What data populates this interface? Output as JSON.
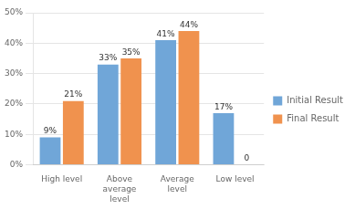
{
  "chart_data": {
    "type": "bar",
    "categories": [
      "High level",
      "Above\naverage\nlevel",
      "Average\nlevel",
      "Low level"
    ],
    "series": [
      {
        "name": "Initial Result",
        "color": "#70A6D8",
        "values": [
          9,
          33,
          41,
          17
        ],
        "value_labels": [
          "9%",
          "33%",
          "41%",
          "17%"
        ]
      },
      {
        "name": "Final Result",
        "color": "#F0924E",
        "values": [
          21,
          35,
          44,
          0
        ],
        "value_labels": [
          "21%",
          "35%",
          "44%",
          "0"
        ]
      }
    ],
    "ylim": [
      0,
      50
    ],
    "yticks": [
      {
        "value": 0,
        "label": "0%"
      },
      {
        "value": 10,
        "label": "10%"
      },
      {
        "value": 20,
        "label": "20%"
      },
      {
        "value": 30,
        "label": "30%"
      },
      {
        "value": 40,
        "label": "40%"
      },
      {
        "value": 50,
        "label": "50%"
      }
    ],
    "grid": true,
    "legend": "right",
    "data_labels": true
  }
}
